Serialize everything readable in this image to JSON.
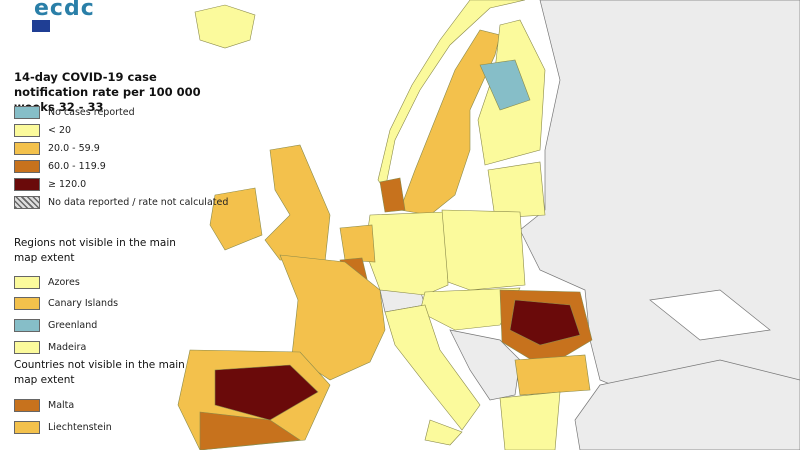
{
  "logo": "ecdc",
  "title": "14-day COVID-19 case notification rate per 100 000 weeks 32 - 33",
  "legend": [
    {
      "label": "No cases reported",
      "color": "#86bec8"
    },
    {
      "label": "< 20",
      "color": "#fbfa9c"
    },
    {
      "label": "20.0 - 59.9",
      "color": "#f3c14c"
    },
    {
      "label": "60.0 - 119.9",
      "color": "#c7721d"
    },
    {
      "label": "≥ 120.0",
      "color": "#6a0a0a"
    },
    {
      "label": "No data reported / rate not calculated",
      "color": "#a0a0a0",
      "hatched": true
    }
  ],
  "regions_title": "Regions not visible in the main map extent",
  "regions": [
    {
      "label": "Azores",
      "color": "#fbfa9c"
    },
    {
      "label": "Canary Islands",
      "color": "#f3c14c"
    },
    {
      "label": "Greenland",
      "color": "#86bec8"
    },
    {
      "label": "Madeira",
      "color": "#fbfa9c"
    }
  ],
  "countries_title": "Countries not visible in the main map extent",
  "countries": [
    {
      "label": "Malta",
      "color": "#c7721d"
    },
    {
      "label": "Liechtenstein",
      "color": "#f3c14c"
    }
  ]
}
